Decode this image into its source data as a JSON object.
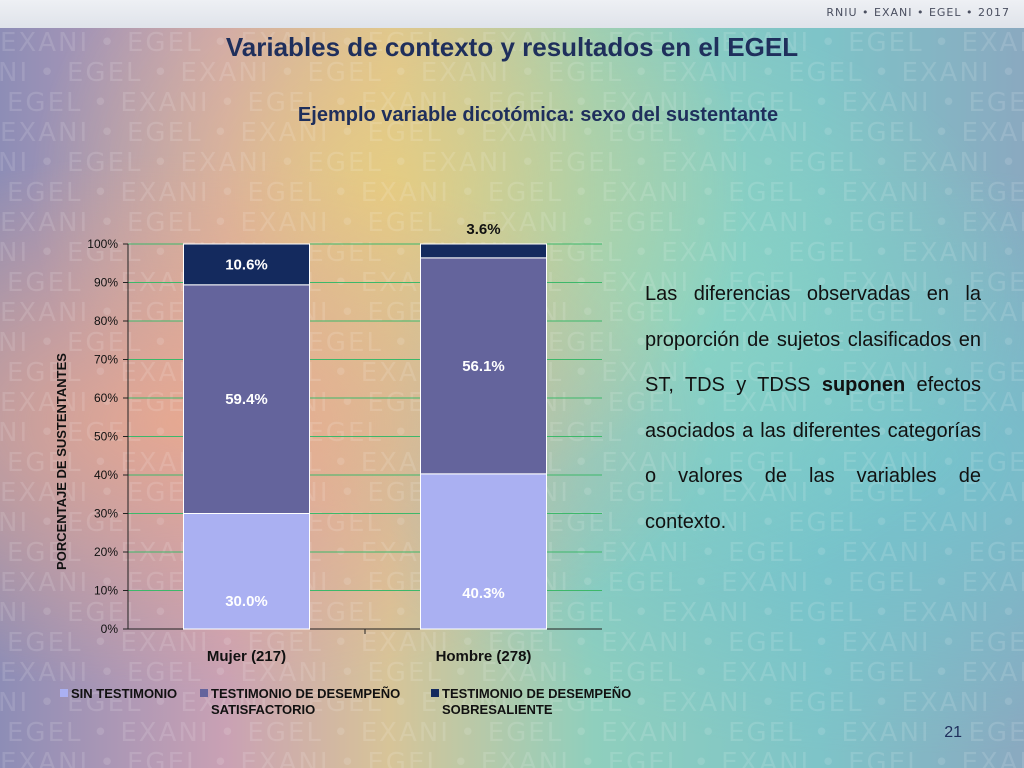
{
  "header": {
    "brand": "RNIU • EXANI • EGEL • 2017"
  },
  "watermark_text": "EXANI • EGEL • EXANI • EGEL • EXANI • EGEL • EXANI • EGEL • EXANI • EGEL • EXANI",
  "slide": {
    "title": "Variables de contexto y resultados en el EGEL",
    "subtitle": "Ejemplo variable dicotómica: sexo del sustentante",
    "paragraph": {
      "part1": "Las diferencias observadas en la proporción de sujetos clasificados en ST, TDS y TDSS ",
      "bold": "suponen",
      "part2": " efectos asociados a las diferentes categorías o valores de las variables de contexto."
    },
    "page_number": "21"
  },
  "chart_data": {
    "type": "bar",
    "stacked": true,
    "categories": [
      "Mujer (217)",
      "Hombre (278)"
    ],
    "ylabel": "PORCENTAJE DE SUSTENTANTES",
    "xlabel": "",
    "ylim": [
      0,
      100
    ],
    "yticks": [
      "0%",
      "10%",
      "20%",
      "30%",
      "40%",
      "50%",
      "60%",
      "70%",
      "80%",
      "90%",
      "100%"
    ],
    "grid": true,
    "legend_position": "bottom",
    "series": [
      {
        "name": "SIN TESTIMONIO",
        "values": [
          30.0,
          40.3
        ],
        "labels": [
          "30.0%",
          "40.3%"
        ],
        "color": "#aab0f2",
        "label_color": "#ffffff"
      },
      {
        "name": "TESTIMONIO DE DESEMPEÑO SATISFACTORIO",
        "legend_lines": [
          "TESTIMONIO DE DESEMPEÑO",
          "SATISFACTORIO"
        ],
        "values": [
          59.4,
          56.1
        ],
        "labels": [
          "59.4%",
          "56.1%"
        ],
        "color": "#64649c",
        "label_color": "#ffffff"
      },
      {
        "name": "TESTIMONIO DE DESEMPEÑO SOBRESALIENTE",
        "legend_lines": [
          "TESTIMONIO DE DESEMPEÑO",
          "SOBRESALIENTE"
        ],
        "values": [
          10.6,
          3.6
        ],
        "labels": [
          "10.6%",
          "3.6%"
        ],
        "color": "#142a5e",
        "label_color": "#ffffff",
        "outside_label_color": "#111111"
      }
    ],
    "axis_color": "#222222",
    "grid_color": "#3db86a"
  }
}
